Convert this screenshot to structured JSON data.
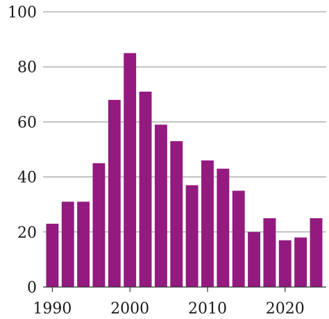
{
  "chart_data": {
    "type": "bar",
    "title": "",
    "xlabel": "",
    "ylabel": "",
    "x": [
      1990,
      1992,
      1994,
      1996,
      1998,
      2000,
      2002,
      2004,
      2006,
      2008,
      2010,
      2012,
      2014,
      2016,
      2018,
      2020,
      2022,
      2024
    ],
    "values": [
      23,
      31,
      31,
      45,
      68,
      85,
      71,
      59,
      53,
      37,
      46,
      43,
      35,
      20,
      25,
      17,
      18,
      25
    ],
    "ylim": [
      0,
      100
    ],
    "xlim": [
      1988.8,
      2025.3
    ],
    "yticks": [
      0,
      20,
      40,
      60,
      80,
      100
    ],
    "xticks": [
      1990,
      2000,
      2010,
      2020
    ],
    "ytick_labels": [
      "0",
      "20",
      "40",
      "60",
      "80",
      "100"
    ],
    "xtick_labels": [
      "1990",
      "2000",
      "2010",
      "2020"
    ],
    "bar_width_years": 1.6,
    "bar_color": "#931a7f",
    "grid": "horizontal",
    "legend": "none"
  }
}
